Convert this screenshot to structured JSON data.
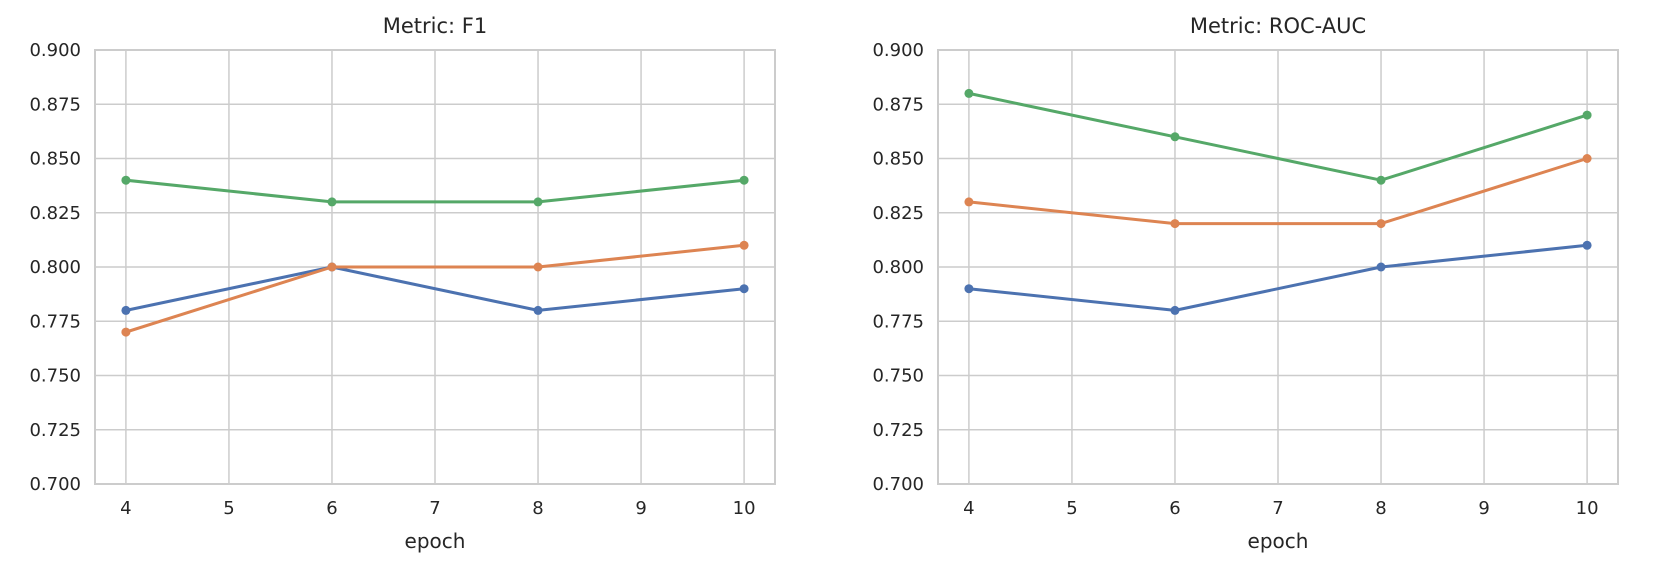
{
  "figure": {
    "background": "#ffffff",
    "text_color": "#262626",
    "grid_color": "#cccccc",
    "spine_color": "#cccccc"
  },
  "chart_data": [
    {
      "type": "line",
      "title": "Metric: F1",
      "xlabel": "epoch",
      "ylabel": "",
      "x": [
        4,
        6,
        8,
        10
      ],
      "xlim": [
        3.7,
        10.3
      ],
      "ylim": [
        0.7,
        0.9
      ],
      "grid": true,
      "legend": "none",
      "xticks": {
        "values": [
          4,
          5,
          6,
          7,
          8,
          9,
          10
        ],
        "labels": [
          "4",
          "5",
          "6",
          "7",
          "8",
          "9",
          "10"
        ]
      },
      "yticks": {
        "values": [
          0.7,
          0.725,
          0.75,
          0.775,
          0.8,
          0.825,
          0.85,
          0.875,
          0.9
        ],
        "labels": [
          "0.700",
          "0.725",
          "0.750",
          "0.775",
          "0.800",
          "0.825",
          "0.850",
          "0.875",
          "0.900"
        ]
      },
      "series": [
        {
          "color": "#4C72B0",
          "marker": "circle",
          "values": [
            0.78,
            0.8,
            0.78,
            0.79
          ]
        },
        {
          "color": "#DD8452",
          "marker": "circle",
          "values": [
            0.77,
            0.8,
            0.8,
            0.81
          ]
        },
        {
          "color": "#55A868",
          "marker": "circle",
          "values": [
            0.84,
            0.83,
            0.83,
            0.84
          ]
        }
      ]
    },
    {
      "type": "line",
      "title": "Metric: ROC-AUC",
      "xlabel": "epoch",
      "ylabel": "",
      "x": [
        4,
        6,
        8,
        10
      ],
      "xlim": [
        3.7,
        10.3
      ],
      "ylim": [
        0.7,
        0.9
      ],
      "grid": true,
      "legend": "none",
      "xticks": {
        "values": [
          4,
          5,
          6,
          7,
          8,
          9,
          10
        ],
        "labels": [
          "4",
          "5",
          "6",
          "7",
          "8",
          "9",
          "10"
        ]
      },
      "yticks": {
        "values": [
          0.7,
          0.725,
          0.75,
          0.775,
          0.8,
          0.825,
          0.85,
          0.875,
          0.9
        ],
        "labels": [
          "0.700",
          "0.725",
          "0.750",
          "0.775",
          "0.800",
          "0.825",
          "0.850",
          "0.875",
          "0.900"
        ]
      },
      "series": [
        {
          "color": "#4C72B0",
          "marker": "circle",
          "values": [
            0.79,
            0.78,
            0.8,
            0.81
          ]
        },
        {
          "color": "#DD8452",
          "marker": "circle",
          "values": [
            0.83,
            0.82,
            0.82,
            0.85
          ]
        },
        {
          "color": "#55A868",
          "marker": "circle",
          "values": [
            0.88,
            0.86,
            0.84,
            0.87
          ]
        }
      ]
    }
  ]
}
